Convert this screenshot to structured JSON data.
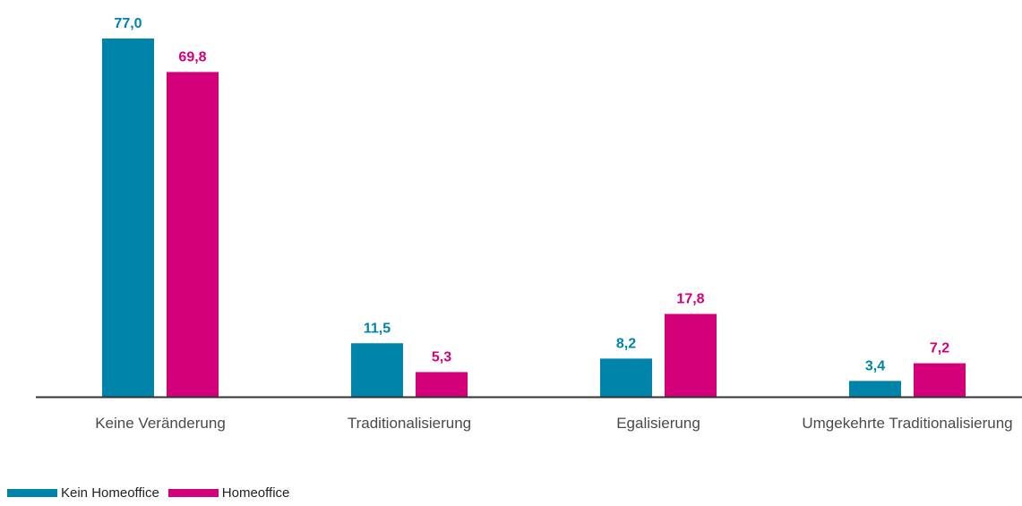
{
  "chart_data": {
    "type": "bar",
    "title": "",
    "xlabel": "",
    "ylabel": "",
    "categories": [
      "Keine Veränderung",
      "Traditionalisierung",
      "Egalisierung",
      "Umgekehrte Traditionalisierung"
    ],
    "series": [
      {
        "name": "Kein Homeoffice",
        "color": "#0083a9",
        "values": [
          77.0,
          11.5,
          8.2,
          3.4
        ],
        "labels": [
          "77,0",
          "11,5",
          "8,2",
          "3,4"
        ]
      },
      {
        "name": "Homeoffice",
        "color": "#d4007a",
        "values": [
          69.8,
          5.3,
          17.8,
          7.2
        ],
        "labels": [
          "69,8",
          "5,3",
          "17,8",
          "7,2"
        ]
      }
    ],
    "ylim": [
      0,
      77
    ],
    "grid": false,
    "legend_position": "bottom-left",
    "axis_color": "#333333"
  }
}
